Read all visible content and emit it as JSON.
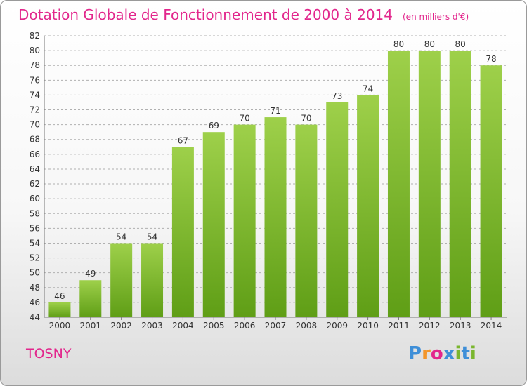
{
  "title": "Dotation Globale de Fonctionnement de 2000 à 2014",
  "subtitle": "(en milliers d'€)",
  "city": "TOSNY",
  "logo": {
    "text": "Proxiti",
    "colors": [
      "#3f8fd8",
      "#f3962b",
      "#e2268c",
      "#3f8fd8",
      "#7ab62e",
      "#3f8fd8",
      "#7ab62e"
    ]
  },
  "colors": {
    "accent": "#e2268c",
    "bar_top": "#9ed04a",
    "bar_bottom": "#5f9e16",
    "grid": "#b0b0b0"
  },
  "chart_data": {
    "type": "bar",
    "title": "Dotation Globale de Fonctionnement de 2000 à 2014",
    "subtitle": "(en milliers d'€)",
    "categories": [
      "2000",
      "2001",
      "2002",
      "2003",
      "2004",
      "2005",
      "2006",
      "2007",
      "2008",
      "2009",
      "2010",
      "2011",
      "2012",
      "2013",
      "2014"
    ],
    "values": [
      46,
      49,
      54,
      54,
      67,
      69,
      70,
      71,
      70,
      73,
      74,
      80,
      80,
      80,
      78
    ],
    "ylim": [
      44,
      82
    ],
    "yticks": [
      44,
      46,
      48,
      50,
      52,
      54,
      56,
      58,
      60,
      62,
      64,
      66,
      68,
      70,
      72,
      74,
      76,
      78,
      80,
      82
    ],
    "grid": "horizontal dashed",
    "xlabel": "",
    "ylabel": ""
  }
}
